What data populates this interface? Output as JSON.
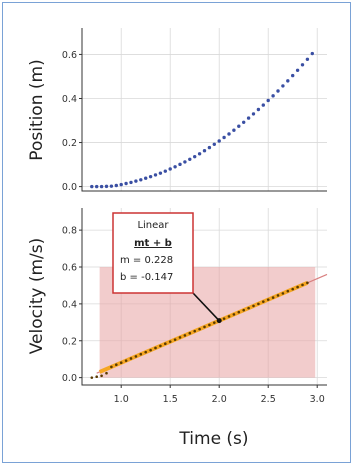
{
  "chart_data": [
    {
      "type": "scatter",
      "ylabel": "Position (m)",
      "xlabel": "",
      "xlim": [
        0.6,
        3.1
      ],
      "ylim": [
        -0.02,
        0.72
      ],
      "yticks": [
        0.0,
        0.2,
        0.4,
        0.6
      ],
      "yticklabels": [
        "0.0",
        "0.2",
        "0.4",
        "0.6"
      ],
      "grid": true,
      "marker_color": "#3a4fa3",
      "series": [
        {
          "x": [
            0.7,
            0.75,
            0.8,
            0.85,
            0.9,
            0.95,
            1.0,
            1.05,
            1.1,
            1.15,
            1.2,
            1.25,
            1.3,
            1.35,
            1.4,
            1.45,
            1.5,
            1.55,
            1.6,
            1.65,
            1.7,
            1.75,
            1.8,
            1.85,
            1.9,
            1.95,
            2.0,
            2.05,
            2.1,
            2.15,
            2.2,
            2.25,
            2.3,
            2.35,
            2.4,
            2.45,
            2.5,
            2.55,
            2.6,
            2.65,
            2.7,
            2.75,
            2.8,
            2.85,
            2.9,
            2.95
          ],
          "values": [
            0.0,
            0.0,
            0.0,
            0.001,
            0.002,
            0.005,
            0.009,
            0.014,
            0.019,
            0.025,
            0.031,
            0.038,
            0.045,
            0.053,
            0.061,
            0.07,
            0.08,
            0.09,
            0.101,
            0.112,
            0.124,
            0.136,
            0.149,
            0.163,
            0.177,
            0.192,
            0.207,
            0.223,
            0.239,
            0.256,
            0.274,
            0.292,
            0.311,
            0.33,
            0.35,
            0.37,
            0.391,
            0.412,
            0.434,
            0.457,
            0.48,
            0.504,
            0.528,
            0.553,
            0.578,
            0.604
          ]
        }
      ]
    },
    {
      "type": "scatter",
      "ylabel": "Velocity (m/s)",
      "xlabel": "Time (s)",
      "xlim": [
        0.6,
        3.1
      ],
      "ylim": [
        -0.04,
        0.92
      ],
      "xticks": [
        1.0,
        1.5,
        2.0,
        2.5,
        3.0
      ],
      "xticklabels": [
        "1.0",
        "1.5",
        "2.0",
        "2.5",
        "3.0"
      ],
      "yticks": [
        0.0,
        0.2,
        0.4,
        0.6,
        0.8
      ],
      "yticklabels": [
        "0.0",
        "0.2",
        "0.4",
        "0.6",
        "0.8"
      ],
      "grid": true,
      "marker_color": "#5a3a00",
      "fit_line_color": "#f5a623",
      "selection_region": {
        "x": [
          0.78,
          2.98
        ],
        "y": [
          0.0,
          0.6
        ],
        "color": "#e8a3a3"
      },
      "fit_extension_color": "#d98080",
      "series": [
        {
          "x": [
            0.7,
            0.75,
            0.8,
            0.85,
            0.9,
            0.95,
            1.0,
            1.05,
            1.1,
            1.15,
            1.2,
            1.25,
            1.3,
            1.35,
            1.4,
            1.45,
            1.5,
            1.55,
            1.6,
            1.65,
            1.7,
            1.75,
            1.8,
            1.85,
            1.9,
            1.95,
            2.0,
            2.05,
            2.1,
            2.15,
            2.2,
            2.25,
            2.3,
            2.35,
            2.4,
            2.45,
            2.5,
            2.55,
            2.6,
            2.65,
            2.7,
            2.75,
            2.8,
            2.85,
            2.9
          ],
          "values": [
            0.0,
            0.005,
            0.01,
            0.024,
            0.058,
            0.07,
            0.081,
            0.092,
            0.104,
            0.115,
            0.127,
            0.138,
            0.149,
            0.161,
            0.172,
            0.184,
            0.195,
            0.206,
            0.218,
            0.229,
            0.241,
            0.252,
            0.263,
            0.275,
            0.286,
            0.298,
            0.309,
            0.32,
            0.332,
            0.343,
            0.355,
            0.366,
            0.377,
            0.389,
            0.4,
            0.412,
            0.423,
            0.434,
            0.446,
            0.457,
            0.469,
            0.48,
            0.491,
            0.503,
            0.514
          ]
        }
      ],
      "fit": {
        "m": 0.228,
        "b": -0.147,
        "x_range": [
          0.75,
          3.1
        ]
      },
      "annotation": {
        "title": "Linear",
        "formula": "mt + b",
        "line1": "m = 0.228",
        "line2": "b = -0.147",
        "point_x": 2.0,
        "border_color": "#cc3333"
      }
    }
  ]
}
